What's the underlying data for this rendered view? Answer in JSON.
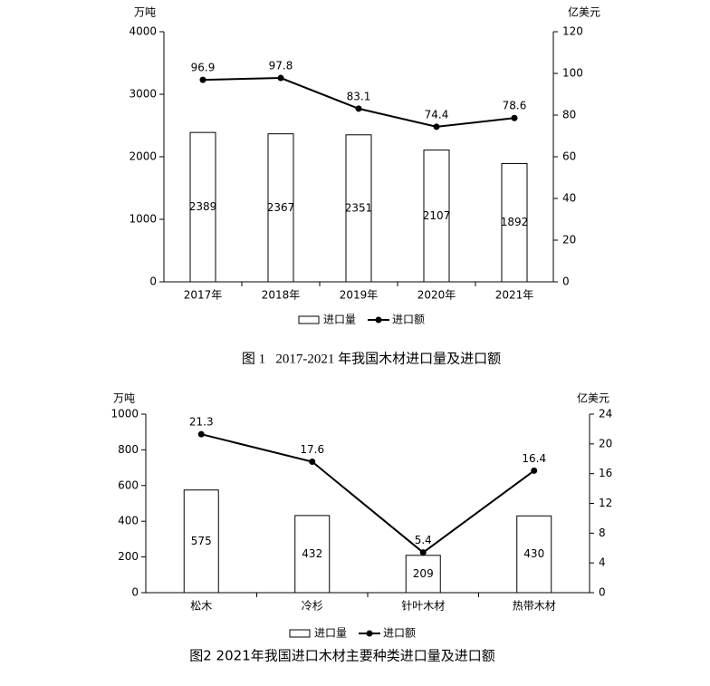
{
  "chart_data": [
    {
      "type": "combo",
      "title": "图 1   2017-2021 年我国木材进口量及进口额",
      "y_label": "万吨",
      "y2_label": "亿美元",
      "categories": [
        "2017年",
        "2018年",
        "2019年",
        "2020年",
        "2021年"
      ],
      "series": [
        {
          "name": "进口量",
          "type": "bar",
          "color": "#ffffff",
          "values": [
            2389,
            2367,
            2351,
            2107,
            1892
          ]
        },
        {
          "name": "进口额",
          "type": "line",
          "axis": "y2",
          "color": "#000000",
          "values": [
            96.9,
            97.8,
            83.1,
            74.4,
            78.6
          ]
        }
      ],
      "ylim": [
        0,
        4000
      ],
      "yticks": [
        0,
        1000,
        2000,
        3000,
        4000
      ],
      "y2lim": [
        0,
        120
      ],
      "y2ticks": [
        0,
        20,
        40,
        60,
        80,
        100,
        120
      ],
      "legend": "bottom"
    },
    {
      "type": "combo",
      "title": "图2 2021年我国进口木材主要种类进口量及进口额",
      "y_label": "万吨",
      "y2_label": "亿美元",
      "categories": [
        "松木",
        "冷杉",
        "针叶木材",
        "热带木材"
      ],
      "series": [
        {
          "name": "进口量",
          "type": "bar",
          "color": "#ffffff",
          "values": [
            575,
            432,
            209,
            430
          ]
        },
        {
          "name": "进口额",
          "type": "line",
          "axis": "y2",
          "color": "#000000",
          "values": [
            21.3,
            17.6,
            5.4,
            16.4
          ]
        }
      ],
      "ylim": [
        0,
        1000
      ],
      "yticks": [
        0,
        200,
        400,
        600,
        800,
        1000
      ],
      "y2lim": [
        0,
        24
      ],
      "y2ticks": [
        0,
        4,
        8,
        12,
        16,
        20,
        24
      ],
      "legend": "bottom"
    }
  ]
}
